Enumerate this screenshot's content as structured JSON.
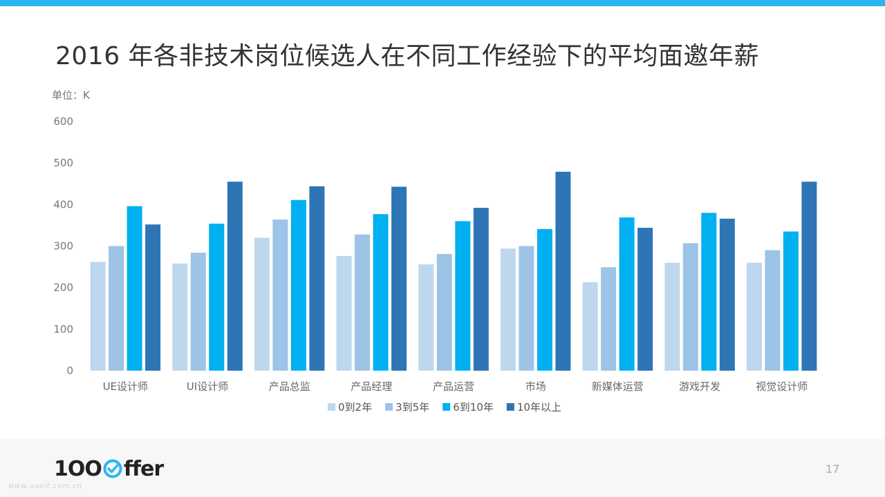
{
  "title": "2016 年各非技术岗位候选人在不同工作经验下的平均面邀年薪",
  "unit_label": "单位：K",
  "page_number": "17",
  "logo": {
    "prefix": "1OO",
    "suffix": "ffer"
  },
  "watermark": "www.useit.com.cn",
  "colors": {
    "accent_bar": "#29b6f0",
    "series": [
      "#bdd7ee",
      "#9dc3e6",
      "#00b0f0",
      "#2e75b6"
    ]
  },
  "chart_data": {
    "type": "bar",
    "title": "2016 年各非技术岗位候选人在不同工作经验下的平均面邀年薪",
    "ylabel": "单位：K",
    "xlabel": "",
    "ylim": [
      0,
      600
    ],
    "yticks": [
      0,
      100,
      200,
      300,
      400,
      500,
      600
    ],
    "grid": false,
    "legend_position": "bottom",
    "categories": [
      "UE设计师",
      "UI设计师",
      "产品总监",
      "产品经理",
      "产品运营",
      "市场",
      "新媒体运营",
      "游戏开发",
      "视觉设计师"
    ],
    "series": [
      {
        "name": "0到2年",
        "color": "#bdd7ee",
        "values": [
          262,
          258,
          320,
          276,
          256,
          294,
          213,
          260,
          260
        ]
      },
      {
        "name": "3到5年",
        "color": "#9dc3e6",
        "values": [
          300,
          284,
          364,
          328,
          281,
          300,
          249,
          307,
          290
        ]
      },
      {
        "name": "6到10年",
        "color": "#00b0f0",
        "values": [
          396,
          354,
          411,
          377,
          360,
          341,
          369,
          380,
          335
        ]
      },
      {
        "name": "10年以上",
        "color": "#2e75b6",
        "values": [
          352,
          455,
          444,
          443,
          392,
          479,
          344,
          366,
          455
        ]
      }
    ]
  }
}
